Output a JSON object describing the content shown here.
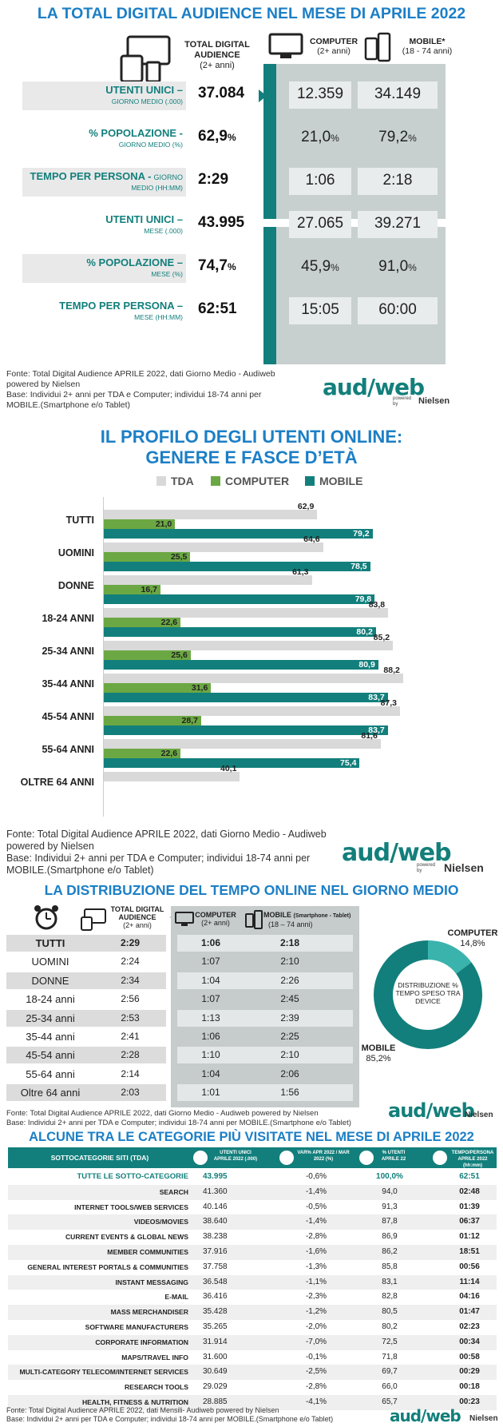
{
  "colors": {
    "teal": "#127f7c",
    "green": "#6ba843",
    "grey": "#d9d9d9",
    "title_blue": "#1c7fc6"
  },
  "s1": {
    "title": "LA TOTAL DIGITAL AUDIENCE NEL MESE DI APRILE 2022",
    "hdr_tda": "TOTAL DIGITAL AUDIENCE",
    "hdr_tda_sub": "(2+ anni)",
    "hdr_computer": "COMPUTER",
    "hdr_computer_sub": "(2+ anni)",
    "hdr_mobile": "MOBILE*",
    "hdr_mobile_sub": "(18 - 74 anni)",
    "rows": [
      {
        "l1": "UTENTI UNICI –",
        "l2": "GIORNO MEDIO (.000)",
        "tda": "37.084",
        "tda_unit": "",
        "pc": "12.359",
        "pc_unit": "",
        "mob": "34.149",
        "mob_unit": ""
      },
      {
        "l1": "% POPOLAZIONE -",
        "l2": "GIORNO MEDIO (%)",
        "tda": "62,9",
        "tda_unit": "%",
        "pc": "21,0",
        "pc_unit": "%",
        "mob": "79,2",
        "mob_unit": "%"
      },
      {
        "l1": "TEMPO PER PERSONA -",
        "l1b": "GIORNO",
        "l2": "MEDIO (HH:MM)",
        "tda": "2:29",
        "tda_unit": "",
        "pc": "1:06",
        "pc_unit": "",
        "mob": "2:18",
        "mob_unit": ""
      },
      {
        "l1": "UTENTI UNICI –",
        "l2": "MESE (.000)",
        "tda": "43.995",
        "tda_unit": "",
        "pc": "27.065",
        "pc_unit": "",
        "mob": "39.271",
        "mob_unit": ""
      },
      {
        "l1": "% POPOLAZIONE –",
        "l2": "MESE (%)",
        "tda": "74,7",
        "tda_unit": "%",
        "pc": "45,9",
        "pc_unit": "%",
        "mob": "91,0",
        "mob_unit": "%"
      },
      {
        "l1": "TEMPO PER PERSONA –",
        "l2": "MESE (HH:MM)",
        "tda": "62:51",
        "tda_unit": "",
        "pc": "15:05",
        "pc_unit": "",
        "mob": "60:00",
        "mob_unit": ""
      }
    ],
    "source1": "Fonte: Total Digital Audience APRILE 2022, dati Giorno Medio - Audiweb",
    "source2": "powered by Nielsen",
    "source3": "Base: Individui 2+ anni per TDA e Computer; individui 18-74 anni per",
    "source4": "MOBILE.(Smartphone e/o Tablet)"
  },
  "logo": {
    "brand": "aud/web",
    "powered": "powered by",
    "partner": "Nielsen"
  },
  "chart_data": {
    "type": "bar",
    "title": "IL PROFILO DEGLI UTENTI ONLINE:",
    "subtitle": "GENERE E FASCE D’ETÀ",
    "categories": [
      "TUTTI",
      "UOMINI",
      "DONNE",
      "18-24 ANNI",
      "25-34 ANNI",
      "35-44 ANNI",
      "45-54 ANNI",
      "55-64 ANNI",
      "OLTRE 64 ANNI"
    ],
    "series": [
      {
        "name": "TDA",
        "values": [
          62.9,
          64.6,
          61.3,
          83.8,
          85.2,
          88.2,
          87.3,
          81.6,
          40.1
        ],
        "labels": [
          "62,9",
          "64,6",
          "61,3",
          "83,8",
          "85,2",
          "88,2",
          "87,3",
          "81,6",
          "40,1"
        ]
      },
      {
        "name": "COMPUTER",
        "values": [
          21.0,
          25.5,
          16.7,
          22.6,
          25.6,
          31.6,
          28.7,
          22.6,
          null
        ],
        "labels": [
          "21,0",
          "25,5",
          "16,7",
          "22,6",
          "25,6",
          "31,6",
          "28,7",
          "22,6",
          ""
        ]
      },
      {
        "name": "MOBILE",
        "values": [
          79.2,
          78.5,
          79.8,
          80.2,
          80.9,
          83.7,
          83.7,
          75.4,
          null
        ],
        "labels": [
          "79,2",
          "78,5",
          "79,8",
          "80,2",
          "80,9",
          "83,7",
          "83,7",
          "75,4",
          ""
        ]
      }
    ],
    "xlim": [
      0,
      100
    ],
    "legend": "top",
    "source1": "Fonte: Total Digital Audience APRILE 2022, dati Giorno Medio - Audiweb",
    "source2": "powered by Nielsen",
    "source3": "Base:  Individui 2+ anni per TDA e Computer; individui 18-74 anni per",
    "source4": "MOBILE.(Smartphone e/o Tablet)"
  },
  "s3": {
    "title": "LA DISTRIBUZIONE DEL TEMPO ONLINE NEL GIORNO MEDIO",
    "hdr_tda": "TOTAL DIGITAL AUDIENCE",
    "hdr_tda_sub": "(2+ anni)",
    "hdr_computer": "COMPUTER",
    "hdr_computer_sub": "(2+ anni)",
    "hdr_mobile": "MOBILE",
    "hdr_mobile_small": "(Smartphone - Tablet)",
    "hdr_mobile_sub": "(18 – 74 anni)",
    "rows": [
      {
        "label": "TUTTI",
        "tda": "2:29",
        "pc": "1:06",
        "mob": "2:18"
      },
      {
        "label": "UOMINI",
        "tda": "2:24",
        "pc": "1:07",
        "mob": "2:10"
      },
      {
        "label": "DONNE",
        "tda": "2:34",
        "pc": "1:04",
        "mob": "2:26"
      },
      {
        "label": "18-24 anni",
        "tda": "2:56",
        "pc": "1:07",
        "mob": "2:45"
      },
      {
        "label": "25-34 anni",
        "tda": "2:53",
        "pc": "1:13",
        "mob": "2:39"
      },
      {
        "label": "35-44 anni",
        "tda": "2:41",
        "pc": "1:06",
        "mob": "2:25"
      },
      {
        "label": "45-54 anni",
        "tda": "2:28",
        "pc": "1:10",
        "mob": "2:10"
      },
      {
        "label": "55-64 anni",
        "tda": "2:14",
        "pc": "1:04",
        "mob": "2:06"
      },
      {
        "label": "Oltre 64 anni",
        "tda": "2:03",
        "pc": "1:01",
        "mob": "1:56"
      }
    ],
    "donut": {
      "center": "DISTRIBUZIONE % TEMPO SPESO TRA DEVICE",
      "computer_label": "COMPUTER",
      "computer_value": 14.8,
      "computer_text": "14,8%",
      "mobile_label": "MOBILE",
      "mobile_value": 85.2,
      "mobile_text": "85,2%"
    },
    "source1": "Fonte: Total Digital Audience APRILE 2022, dati Giorno Medio - Audiweb powered by Nielsen",
    "source2": "Base:  Individui 2+ anni per TDA e Computer; individui 18-74 anni per MOBILE.(Smartphone e/o Tablet)"
  },
  "s4": {
    "title": "ALCUNE TRA LE CATEGORIE PIÙ VISITATE NEL MESE DI APRILE 2022",
    "hdr": {
      "cat": "SOTTOCATEGORIE SITI  (TDA)",
      "uu": "UTENTI UNICI APRILE 2022 (.000)",
      "var": "VAR% APR 2022 / MAR 2022 (%)",
      "pct": "% UTENTI APRILE 22",
      "time": "TEMPO/PERSONA APRILE 2022 (hh:mm)"
    },
    "rows": [
      {
        "cat": "TUTTE LE SOTTO-CATEGORIE",
        "uu": "43.995",
        "var": "-0,6%",
        "pct": "100,0%",
        "time": "62:51"
      },
      {
        "cat": "SEARCH",
        "uu": "41.360",
        "var": "-1,4%",
        "pct": "94,0",
        "time": "02:48"
      },
      {
        "cat": "INTERNET TOOLS/WEB SERVICES",
        "uu": "40.146",
        "var": "-0,5%",
        "pct": "91,3",
        "time": "01:39"
      },
      {
        "cat": "VIDEOS/MOVIES",
        "uu": "38.640",
        "var": "-1,4%",
        "pct": "87,8",
        "time": "06:37"
      },
      {
        "cat": "CURRENT EVENTS & GLOBAL NEWS",
        "uu": "38.238",
        "var": "-2,8%",
        "pct": "86,9",
        "time": "01:12"
      },
      {
        "cat": "MEMBER COMMUNITIES",
        "uu": "37.916",
        "var": "-1,6%",
        "pct": "86,2",
        "time": "18:51"
      },
      {
        "cat": "GENERAL INTEREST PORTALS & COMMUNITIES",
        "uu": "37.758",
        "var": "-1,3%",
        "pct": "85,8",
        "time": "00:56"
      },
      {
        "cat": "INSTANT MESSAGING",
        "uu": "36.548",
        "var": "-1,1%",
        "pct": "83,1",
        "time": "11:14"
      },
      {
        "cat": "E-MAIL",
        "uu": "36.416",
        "var": "-2,3%",
        "pct": "82,8",
        "time": "04:16"
      },
      {
        "cat": "MASS MERCHANDISER",
        "uu": "35.428",
        "var": "-1,2%",
        "pct": "80,5",
        "time": "01:47"
      },
      {
        "cat": "SOFTWARE MANUFACTURERS",
        "uu": "35.265",
        "var": "-2,0%",
        "pct": "80,2",
        "time": "02:23"
      },
      {
        "cat": "CORPORATE INFORMATION",
        "uu": "31.914",
        "var": "-7,0%",
        "pct": "72,5",
        "time": "00:34"
      },
      {
        "cat": "MAPS/TRAVEL INFO",
        "uu": "31.600",
        "var": "-0,1%",
        "pct": "71,8",
        "time": "00:58"
      },
      {
        "cat": "MULTI-CATEGORY TELECOM/INTERNET SERVICES",
        "uu": "30.649",
        "var": "-2,5%",
        "pct": "69,7",
        "time": "00:29"
      },
      {
        "cat": "RESEARCH TOOLS",
        "uu": "29.029",
        "var": "-2,8%",
        "pct": "66,0",
        "time": "00:18"
      },
      {
        "cat": "HEALTH, FITNESS & NUTRITION",
        "uu": "28.885",
        "var": "-4,1%",
        "pct": "65,7",
        "time": "00:23"
      }
    ],
    "source1": "Fonte: Total Digital Audience APRILE 2022, dati Mensili- Audiweb powered by Nielsen",
    "source2": "Base:  Individui 2+ anni per TDA e Computer; individui 18-74 anni per MOBILE.(Smartphone e/o Tablet)"
  }
}
